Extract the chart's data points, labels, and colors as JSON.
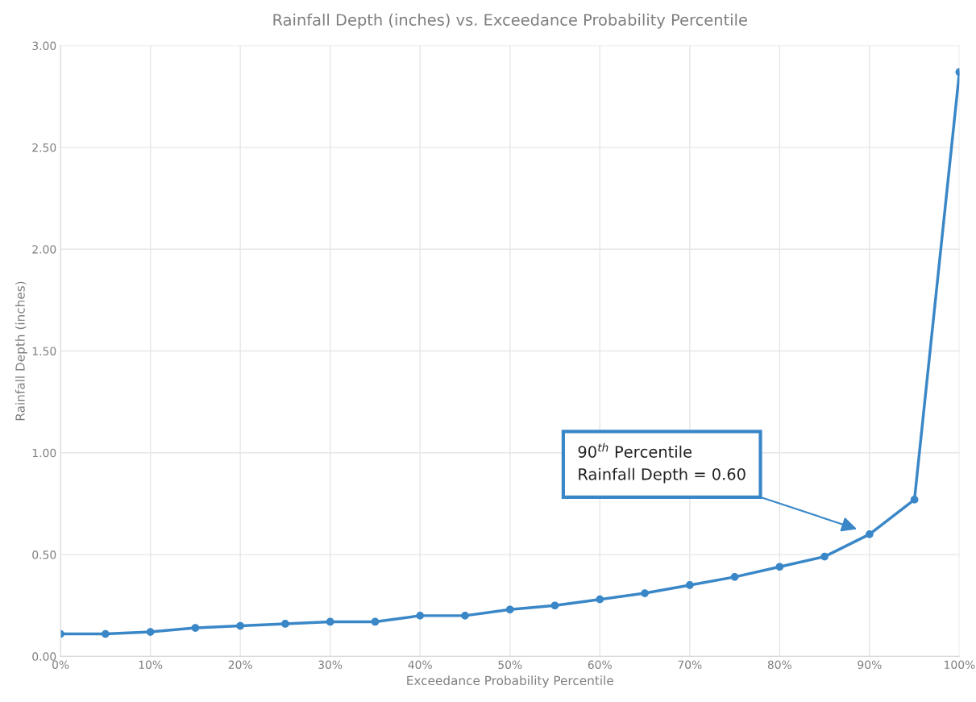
{
  "chart_data": {
    "type": "line",
    "title": "Rainfall Depth (inches) vs. Exceedance Probability Percentile",
    "xlabel": "Exceedance Probability Percentile",
    "ylabel": "Rainfall Depth (inches)",
    "x": [
      0,
      5,
      10,
      15,
      20,
      25,
      30,
      35,
      40,
      45,
      50,
      55,
      60,
      65,
      70,
      75,
      80,
      85,
      90,
      95,
      100
    ],
    "series": [
      {
        "color": "#3a87c8",
        "values": [
          0.11,
          0.11,
          0.12,
          0.14,
          0.15,
          0.16,
          0.17,
          0.17,
          0.2,
          0.2,
          0.23,
          0.25,
          0.28,
          0.31,
          0.35,
          0.39,
          0.44,
          0.49,
          0.6,
          0.77,
          2.87
        ]
      }
    ],
    "xlim": [
      0,
      100
    ],
    "xticks": [
      {
        "value": 0,
        "label": "0%"
      },
      {
        "value": 10,
        "label": "10%"
      },
      {
        "value": 20,
        "label": "20%"
      },
      {
        "value": 30,
        "label": "30%"
      },
      {
        "value": 40,
        "label": "40%"
      },
      {
        "value": 50,
        "label": "50%"
      },
      {
        "value": 60,
        "label": "60%"
      },
      {
        "value": 70,
        "label": "70%"
      },
      {
        "value": 80,
        "label": "80%"
      },
      {
        "value": 90,
        "label": "90%"
      },
      {
        "value": 100,
        "label": "100%"
      }
    ],
    "ylim": [
      0,
      3
    ],
    "yticks": [
      {
        "value": 0,
        "label": "0.00"
      },
      {
        "value": 0.5,
        "label": "0.50"
      },
      {
        "value": 1,
        "label": "1.00"
      },
      {
        "value": 1.5,
        "label": "1.50"
      },
      {
        "value": 2,
        "label": "2.00"
      },
      {
        "value": 2.5,
        "label": "2.50"
      },
      {
        "value": 3,
        "label": "3.00"
      }
    ],
    "grid": true,
    "marker": "circle",
    "line_style": "solid",
    "annotations": [
      "90$^{th}$ Percentile\nRainfall Depth = 0.60"
    ]
  }
}
